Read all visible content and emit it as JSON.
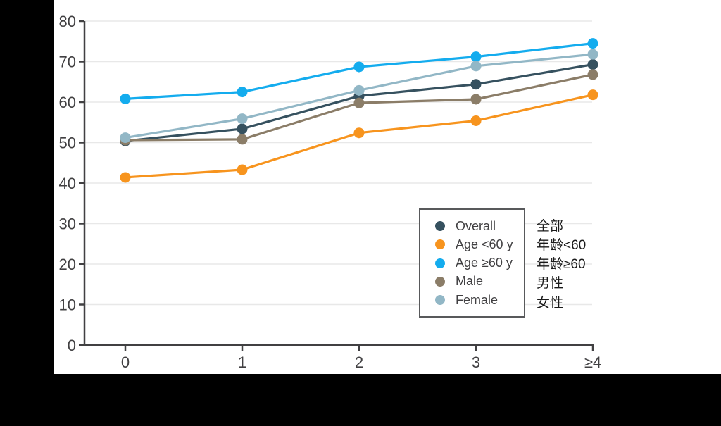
{
  "chart_data": {
    "type": "line",
    "title": "",
    "xlabel": "",
    "ylabel": "",
    "categories": [
      "0",
      "1",
      "2",
      "3",
      "≥4"
    ],
    "series": [
      {
        "name": "Overall",
        "name_zh": "全部",
        "color": "#36515f",
        "values": [
          50.4,
          53.4,
          61.5,
          64.4,
          69.3
        ]
      },
      {
        "name": "Age <60 y",
        "name_zh": "年龄<60",
        "color": "#f7941e",
        "values": [
          41.4,
          43.3,
          52.4,
          55.4,
          61.8
        ]
      },
      {
        "name": "Age ≥60 y",
        "name_zh": "年龄≥60",
        "color": "#14acee",
        "values": [
          60.8,
          62.5,
          68.7,
          71.2,
          74.5
        ]
      },
      {
        "name": "Male",
        "name_zh": "男性",
        "color": "#8b7d68",
        "values": [
          50.6,
          50.8,
          59.8,
          60.7,
          66.8
        ]
      },
      {
        "name": "Female",
        "name_zh": "女性",
        "color": "#92b7c6",
        "values": [
          51.2,
          55.9,
          62.9,
          68.9,
          71.8
        ]
      }
    ],
    "ylim": [
      0,
      80
    ],
    "ytick_step": 10,
    "y_tick_labels": [
      "0",
      "10",
      "20",
      "30",
      "40",
      "50",
      "60",
      "70",
      "80"
    ],
    "grid": true,
    "legend_position": "lower-right-box",
    "colors": {
      "axis": "#414042",
      "gridline": "#e8e8e8",
      "background": "#ffffff",
      "page_background": "#000000"
    }
  }
}
